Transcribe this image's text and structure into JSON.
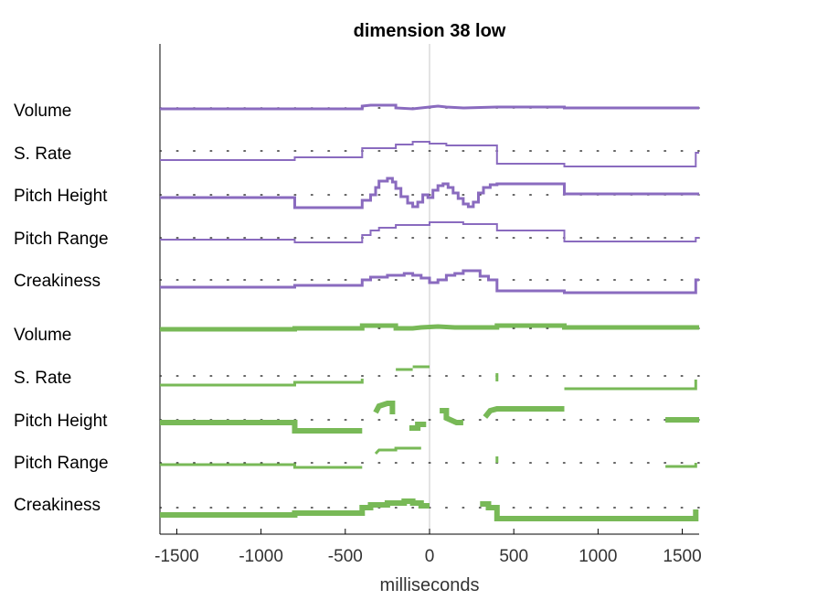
{
  "chart_data": {
    "type": "line",
    "title": "dimension 38 low",
    "xlabel": "milliseconds",
    "ylabel": "",
    "xlim": [
      -1600,
      1600
    ],
    "xticks": [
      "-1500",
      "-1000",
      "-500",
      "0",
      "500",
      "1000",
      "1500"
    ],
    "grid": false,
    "legend": "none",
    "colors": {
      "purple": "#8a6bbf",
      "green": "#78b957",
      "axis": "#000000",
      "zero_line": "#c8c8c8",
      "dot": "#333333"
    },
    "row_labels": [
      "Volume",
      "S. Rate",
      "Pitch Height",
      "Pitch Range",
      "Creakiness",
      "Volume",
      "S. Rate",
      "Pitch Height",
      "Pitch Range",
      "Creakiness"
    ],
    "note_y": "series y values are offsets from each row's dotted baseline (positive = above)",
    "series": [
      {
        "group": "purple",
        "feature": "Volume",
        "stroke": 3,
        "points": [
          [
            -1600,
            -1
          ],
          [
            -800,
            -1
          ],
          [
            -800,
            -1
          ],
          [
            -400,
            -1
          ],
          [
            -400,
            2
          ],
          [
            -350,
            3
          ],
          [
            -200,
            3
          ],
          [
            -200,
            0
          ],
          [
            -100,
            -1
          ],
          [
            -50,
            0
          ],
          [
            0,
            1
          ],
          [
            50,
            2
          ],
          [
            100,
            1
          ],
          [
            200,
            0
          ],
          [
            400,
            1
          ],
          [
            800,
            1
          ],
          [
            800,
            0
          ],
          [
            1600,
            0
          ]
        ]
      },
      {
        "group": "purple",
        "feature": "S. Rate",
        "stroke": 2,
        "points": [
          [
            -1600,
            -10
          ],
          [
            -800,
            -10
          ],
          [
            -800,
            -7
          ],
          [
            -400,
            -7
          ],
          [
            -400,
            3
          ],
          [
            -200,
            3
          ],
          [
            -200,
            7
          ],
          [
            -100,
            7
          ],
          [
            -100,
            10
          ],
          [
            0,
            10
          ],
          [
            0,
            8
          ],
          [
            100,
            8
          ],
          [
            100,
            6
          ],
          [
            400,
            6
          ],
          [
            400,
            -14
          ],
          [
            800,
            -14
          ],
          [
            800,
            -17
          ],
          [
            1580,
            -17
          ],
          [
            1580,
            -2
          ],
          [
            1600,
            -2
          ]
        ]
      },
      {
        "group": "purple",
        "feature": "Pitch Height",
        "stroke": 3,
        "points": [
          [
            -1600,
            -3
          ],
          [
            -800,
            -3
          ],
          [
            -800,
            -14
          ],
          [
            -400,
            -14
          ],
          [
            -400,
            -6
          ],
          [
            -350,
            -6
          ],
          [
            -350,
            0
          ],
          [
            -320,
            0
          ],
          [
            -320,
            8
          ],
          [
            -300,
            8
          ],
          [
            -300,
            15
          ],
          [
            -250,
            15
          ],
          [
            -250,
            18
          ],
          [
            -220,
            18
          ],
          [
            -220,
            14
          ],
          [
            -200,
            14
          ],
          [
            -200,
            7
          ],
          [
            -170,
            7
          ],
          [
            -170,
            -2
          ],
          [
            -130,
            -2
          ],
          [
            -130,
            -9
          ],
          [
            -100,
            -9
          ],
          [
            -100,
            -13
          ],
          [
            -70,
            -13
          ],
          [
            -70,
            -8
          ],
          [
            -40,
            -8
          ],
          [
            -40,
            0
          ],
          [
            -10,
            0
          ],
          [
            -10,
            -3
          ],
          [
            20,
            -3
          ],
          [
            20,
            5
          ],
          [
            50,
            5
          ],
          [
            50,
            10
          ],
          [
            80,
            10
          ],
          [
            80,
            12
          ],
          [
            110,
            12
          ],
          [
            110,
            8
          ],
          [
            140,
            8
          ],
          [
            140,
            2
          ],
          [
            170,
            2
          ],
          [
            170,
            -4
          ],
          [
            200,
            -4
          ],
          [
            200,
            -10
          ],
          [
            230,
            -10
          ],
          [
            230,
            -13
          ],
          [
            260,
            -13
          ],
          [
            260,
            -8
          ],
          [
            290,
            -8
          ],
          [
            290,
            2
          ],
          [
            320,
            2
          ],
          [
            320,
            8
          ],
          [
            360,
            8
          ],
          [
            360,
            11
          ],
          [
            400,
            11
          ],
          [
            400,
            12
          ],
          [
            800,
            12
          ],
          [
            800,
            1
          ],
          [
            1600,
            1
          ]
        ]
      },
      {
        "group": "purple",
        "feature": "Pitch Range",
        "stroke": 2,
        "points": [
          [
            -1600,
            -2
          ],
          [
            -800,
            -2
          ],
          [
            -800,
            -5
          ],
          [
            -400,
            -5
          ],
          [
            -400,
            3
          ],
          [
            -350,
            3
          ],
          [
            -350,
            8
          ],
          [
            -300,
            8
          ],
          [
            -300,
            11
          ],
          [
            -200,
            11
          ],
          [
            -200,
            14
          ],
          [
            0,
            14
          ],
          [
            0,
            17
          ],
          [
            200,
            17
          ],
          [
            200,
            15
          ],
          [
            400,
            15
          ],
          [
            400,
            8
          ],
          [
            800,
            8
          ],
          [
            800,
            -4
          ],
          [
            1580,
            -4
          ],
          [
            1580,
            0
          ],
          [
            1600,
            0
          ]
        ]
      },
      {
        "group": "purple",
        "feature": "Creakiness",
        "stroke": 3,
        "points": [
          [
            -1600,
            -8
          ],
          [
            -800,
            -8
          ],
          [
            -800,
            -6
          ],
          [
            -400,
            -6
          ],
          [
            -400,
            0
          ],
          [
            -350,
            0
          ],
          [
            -350,
            3
          ],
          [
            -250,
            3
          ],
          [
            -250,
            5
          ],
          [
            -150,
            5
          ],
          [
            -150,
            7
          ],
          [
            -100,
            7
          ],
          [
            -100,
            5
          ],
          [
            -50,
            5
          ],
          [
            -50,
            2
          ],
          [
            0,
            2
          ],
          [
            0,
            -3
          ],
          [
            50,
            -3
          ],
          [
            50,
            0
          ],
          [
            100,
            0
          ],
          [
            100,
            5
          ],
          [
            150,
            5
          ],
          [
            150,
            7
          ],
          [
            200,
            7
          ],
          [
            200,
            10
          ],
          [
            300,
            10
          ],
          [
            300,
            4
          ],
          [
            350,
            4
          ],
          [
            350,
            0
          ],
          [
            400,
            0
          ],
          [
            400,
            -12
          ],
          [
            800,
            -12
          ],
          [
            800,
            -14
          ],
          [
            1580,
            -14
          ],
          [
            1580,
            0
          ],
          [
            1600,
            0
          ]
        ]
      },
      {
        "group": "green",
        "feature": "Volume",
        "stroke": 5,
        "points": [
          [
            -1600,
            -1
          ],
          [
            -800,
            -1
          ],
          [
            -800,
            0
          ],
          [
            -400,
            0
          ],
          [
            -400,
            3
          ],
          [
            -350,
            3
          ],
          [
            -200,
            3
          ],
          [
            -200,
            0
          ],
          [
            -100,
            0
          ],
          [
            -50,
            1
          ],
          [
            50,
            2
          ],
          [
            150,
            1
          ],
          [
            400,
            1
          ],
          [
            400,
            3
          ],
          [
            800,
            3
          ],
          [
            800,
            1
          ],
          [
            1600,
            1
          ]
        ]
      },
      {
        "group": "green",
        "feature": "S. Rate",
        "stroke": 3,
        "points": [
          [
            -1600,
            -10
          ],
          [
            -800,
            -10
          ],
          [
            -800,
            -7
          ],
          [
            -400,
            -7
          ],
          [
            -400,
            -3
          ]
        ],
        "extra": [
          [
            [
              -200,
              7
            ],
            [
              -100,
              7
            ]
          ],
          [
            [
              -100,
              10
            ],
            [
              0,
              10
            ]
          ],
          [
            [
              400,
              -6
            ],
            [
              400,
              3
            ]
          ],
          [
            [
              800,
              -14
            ],
            [
              1580,
              -14
            ],
            [
              1580,
              -4
            ]
          ]
        ]
      },
      {
        "group": "green",
        "feature": "Pitch Height",
        "stroke": 6,
        "points": [
          [
            -1600,
            -3
          ],
          [
            -800,
            -3
          ],
          [
            -800,
            -12
          ],
          [
            -400,
            -12
          ]
        ],
        "extra": [
          [
            [
              -320,
              8
            ],
            [
              -300,
              15
            ],
            [
              -250,
              18
            ],
            [
              -220,
              18
            ],
            [
              -220,
              6
            ]
          ],
          [
            [
              -120,
              -9
            ],
            [
              -70,
              -9
            ],
            [
              -70,
              -5
            ],
            [
              -20,
              -5
            ]
          ],
          [
            [
              60,
              10
            ],
            [
              100,
              10
            ],
            [
              100,
              2
            ],
            [
              160,
              -3
            ],
            [
              200,
              -3
            ]
          ],
          [
            [
              330,
              3
            ],
            [
              360,
              10
            ],
            [
              400,
              12
            ],
            [
              800,
              12
            ],
            [
              800,
              12
            ]
          ],
          [
            [
              1400,
              0
            ],
            [
              1600,
              0
            ]
          ]
        ]
      },
      {
        "group": "green",
        "feature": "Pitch Range",
        "stroke": 3,
        "points": [
          [
            -1600,
            -2
          ],
          [
            -800,
            -2
          ],
          [
            -800,
            -5
          ],
          [
            -400,
            -5
          ]
        ],
        "extra": [
          [
            [
              -320,
              10
            ],
            [
              -300,
              14
            ],
            [
              -200,
              14
            ],
            [
              -200,
              16
            ],
            [
              -50,
              16
            ]
          ],
          [
            [
              400,
              0
            ],
            [
              400,
              7
            ]
          ],
          [
            [
              1400,
              -4
            ],
            [
              1580,
              -4
            ],
            [
              1580,
              0
            ]
          ]
        ]
      },
      {
        "group": "green",
        "feature": "Creakiness",
        "stroke": 6,
        "points": [
          [
            -1600,
            -8
          ],
          [
            -800,
            -8
          ],
          [
            -800,
            -6
          ],
          [
            -400,
            -6
          ],
          [
            -400,
            0
          ],
          [
            -350,
            0
          ],
          [
            -350,
            3
          ],
          [
            -250,
            3
          ],
          [
            -250,
            5
          ],
          [
            -150,
            5
          ],
          [
            -150,
            7
          ],
          [
            -100,
            7
          ],
          [
            -100,
            5
          ],
          [
            -50,
            5
          ],
          [
            -50,
            2
          ],
          [
            0,
            2
          ]
        ],
        "extra": [
          [
            [
              300,
              4
            ],
            [
              350,
              4
            ],
            [
              350,
              0
            ],
            [
              400,
              0
            ],
            [
              400,
              -12
            ],
            [
              800,
              -12
            ],
            [
              800,
              -12
            ],
            [
              1580,
              -12
            ],
            [
              1580,
              -2
            ]
          ]
        ]
      }
    ]
  }
}
